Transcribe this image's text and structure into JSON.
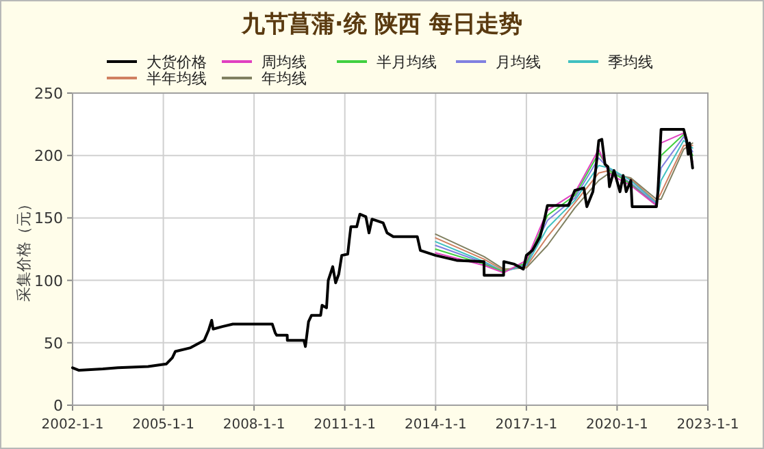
{
  "chart_data": {
    "type": "line",
    "title": "九节菖蒲·统 陕西 每日走势",
    "ylabel": "采集价格（元）",
    "legend": "top",
    "grid": true,
    "line_style": "solid",
    "xlim": [
      "2002-01-01",
      "2023-01-01"
    ],
    "xticks": [
      {
        "value": "2002-01-01",
        "label": "2002-1-1"
      },
      {
        "value": "2005-01-01",
        "label": "2005-1-1"
      },
      {
        "value": "2008-01-01",
        "label": "2008-1-1"
      },
      {
        "value": "2011-01-01",
        "label": "2011-1-1"
      },
      {
        "value": "2014-01-01",
        "label": "2014-1-1"
      },
      {
        "value": "2017-01-01",
        "label": "2017-1-1"
      },
      {
        "value": "2020-01-01",
        "label": "2020-1-1"
      },
      {
        "value": "2023-01-01",
        "label": "2023-1-1"
      }
    ],
    "ylim": [
      0,
      250
    ],
    "yticks": [
      0,
      50,
      100,
      150,
      200,
      250
    ],
    "series": [
      {
        "name": "大货价格",
        "color": "#000000",
        "x": [
          "2002-01-01",
          "2002-03-15",
          "2003-01-01",
          "2003-07-01",
          "2004-07-01",
          "2005-02-05",
          "2005-04-20",
          "2005-05-25",
          "2005-11-25",
          "2006-05-10",
          "2006-07-01",
          "2006-08-08",
          "2006-08-25",
          "2006-12-15",
          "2007-04-20",
          "2008-08-08",
          "2008-09-12",
          "2008-10-01",
          "2009-02-05",
          "2009-02-06",
          "2009-08-25",
          "2009-09-12",
          "2009-10-20",
          "2009-11-25",
          "2010-03-15",
          "2010-04-01",
          "2010-05-25",
          "2010-06-15",
          "2010-08-08",
          "2010-09-12",
          "2010-10-20",
          "2010-11-25",
          "2011-02-05",
          "2011-02-25",
          "2011-03-15",
          "2011-05-25",
          "2011-07-01",
          "2011-09-12",
          "2011-10-20",
          "2011-11-25",
          "2012-04-08",
          "2012-05-25",
          "2012-08-08",
          "2013-05-25",
          "2013-07-01",
          "2014-01-01",
          "2014-09-12",
          "2015-08-08",
          "2015-08-10",
          "2016-04-01",
          "2016-04-03",
          "2016-08-08",
          "2016-11-25",
          "2017-01-01",
          "2017-03-15",
          "2017-06-15",
          "2017-08-08",
          "2017-09-12",
          "2018-05-25",
          "2018-08-08",
          "2018-11-25",
          "2019-01-01",
          "2019-03-15",
          "2019-04-20",
          "2019-05-25",
          "2019-07-01",
          "2019-08-08",
          "2019-09-12",
          "2019-10-01",
          "2019-11-25",
          "2020-02-05",
          "2020-03-15",
          "2020-04-20",
          "2020-06-15",
          "2020-07-01",
          "2021-04-20",
          "2021-05-08",
          "2021-06-15",
          "2022-03-15",
          "2022-04-20",
          "2022-05-08",
          "2022-05-25",
          "2022-07-01"
        ],
        "values": [
          30,
          28,
          29,
          30,
          31,
          33,
          38,
          43,
          46,
          52,
          60,
          68,
          61,
          63,
          65,
          65,
          58,
          56,
          56,
          52,
          52,
          47,
          67,
          72,
          72,
          80,
          78,
          100,
          111,
          98,
          105,
          120,
          121,
          133,
          143,
          143,
          153,
          151,
          138,
          149,
          146,
          138,
          135,
          135,
          124,
          120,
          116,
          115,
          104,
          104,
          115,
          113,
          109,
          120,
          124,
          135,
          149,
          160,
          160,
          172,
          174,
          159,
          171,
          190,
          212,
          213,
          193,
          191,
          175,
          188,
          171,
          184,
          171,
          180,
          159,
          159,
          171,
          221,
          221,
          212,
          201,
          210,
          190
        ]
      },
      {
        "name": "周均线",
        "color": "#e040c0",
        "x": [
          "2014-01-01",
          "2015-08-08",
          "2016-04-01",
          "2017-01-01",
          "2017-09-12",
          "2018-08-08",
          "2019-05-25",
          "2019-10-01",
          "2020-06-15",
          "2021-04-20",
          "2021-06-15",
          "2022-03-15",
          "2022-07-01"
        ],
        "values": [
          122,
          112,
          106,
          116,
          156,
          170,
          205,
          185,
          176,
          160,
          210,
          218,
          195
        ]
      },
      {
        "name": "半月均线",
        "color": "#40d040",
        "x": [
          "2014-01-01",
          "2015-08-08",
          "2016-04-01",
          "2017-01-01",
          "2017-09-12",
          "2018-08-08",
          "2019-05-25",
          "2019-10-01",
          "2020-06-15",
          "2021-04-20",
          "2021-06-15",
          "2022-03-15",
          "2022-07-01"
        ],
        "values": [
          125,
          113,
          107,
          114,
          152,
          168,
          202,
          188,
          177,
          160,
          200,
          217,
          200
        ]
      },
      {
        "name": "月均线",
        "color": "#8080e0",
        "x": [
          "2014-01-01",
          "2015-08-08",
          "2016-04-01",
          "2017-01-01",
          "2017-09-12",
          "2018-08-08",
          "2019-05-25",
          "2019-10-01",
          "2020-06-15",
          "2021-04-20",
          "2021-06-15",
          "2022-03-15",
          "2022-07-01"
        ],
        "values": [
          128,
          114,
          107,
          113,
          148,
          166,
          198,
          189,
          178,
          161,
          190,
          215,
          203
        ]
      },
      {
        "name": "季均线",
        "color": "#40c0c0",
        "x": [
          "2014-01-01",
          "2015-08-08",
          "2016-04-01",
          "2017-01-01",
          "2017-09-12",
          "2018-08-08",
          "2019-05-25",
          "2019-10-01",
          "2020-06-15",
          "2021-04-20",
          "2021-06-15",
          "2022-03-15",
          "2022-07-01"
        ],
        "values": [
          131,
          115,
          107,
          112,
          142,
          164,
          192,
          190,
          180,
          162,
          180,
          212,
          206
        ]
      },
      {
        "name": "半年均线",
        "color": "#d08060",
        "x": [
          "2014-01-01",
          "2015-08-08",
          "2016-04-01",
          "2017-01-01",
          "2017-09-12",
          "2018-08-08",
          "2019-05-25",
          "2019-10-01",
          "2020-06-15",
          "2021-04-20",
          "2021-06-15",
          "2022-03-15",
          "2022-07-01"
        ],
        "values": [
          134,
          117,
          108,
          111,
          135,
          162,
          186,
          188,
          181,
          163,
          170,
          208,
          208
        ]
      },
      {
        "name": "年均线",
        "color": "#808060",
        "x": [
          "2014-01-01",
          "2015-08-08",
          "2016-04-01",
          "2017-01-01",
          "2017-09-12",
          "2018-08-08",
          "2019-05-25",
          "2019-10-01",
          "2020-06-15",
          "2021-04-20",
          "2021-06-15",
          "2022-03-15",
          "2022-07-01"
        ],
        "values": [
          137,
          119,
          109,
          110,
          128,
          158,
          180,
          186,
          182,
          165,
          165,
          205,
          210
        ]
      }
    ]
  }
}
